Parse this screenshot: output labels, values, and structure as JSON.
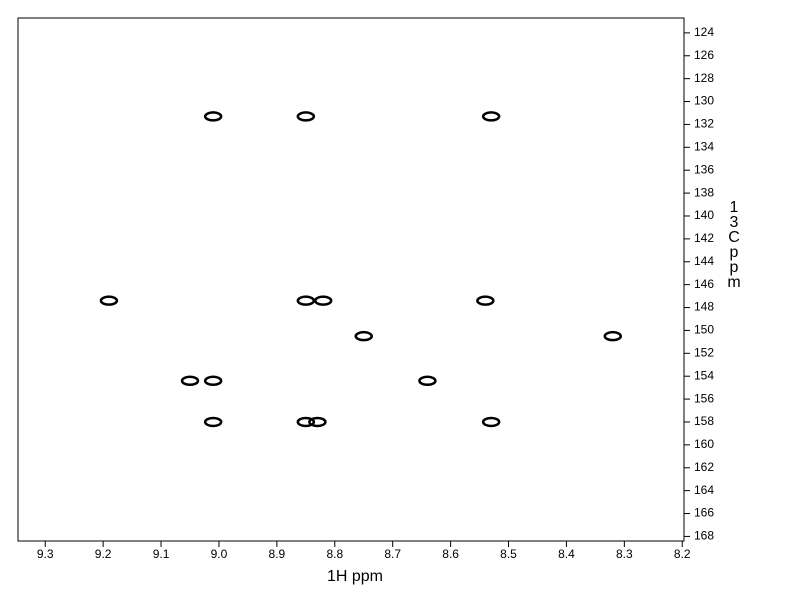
{
  "chart_data": {
    "type": "scatter",
    "color": "#000000",
    "x_label": "1H ppm",
    "y_label": "13C ppm",
    "x": [
      9.01,
      8.85,
      8.53,
      9.19,
      8.85,
      8.82,
      8.54,
      8.75,
      8.32,
      9.05,
      9.01,
      8.64,
      9.01,
      8.85,
      8.83,
      8.53
    ],
    "values": [
      131.3,
      131.3,
      131.3,
      147.4,
      147.4,
      147.4,
      147.4,
      150.5,
      150.5,
      154.4,
      154.4,
      154.4,
      158.0,
      158.0,
      158.0,
      158.0
    ],
    "xlim": [
      9.347,
      8.197
    ],
    "ylim": [
      122.7,
      168.4
    ],
    "xticks": [
      9.3,
      9.2,
      9.1,
      {
        "value": 9,
        "label": "9.0"
      },
      8.9,
      8.8,
      8.7,
      8.6,
      8.5,
      8.4,
      8.3,
      8.2
    ],
    "yticks": [
      124,
      126,
      128,
      130,
      132,
      134,
      136,
      138,
      140,
      142,
      144,
      146,
      148,
      150,
      152,
      154,
      156,
      158,
      160,
      162,
      164,
      166,
      168
    ]
  }
}
